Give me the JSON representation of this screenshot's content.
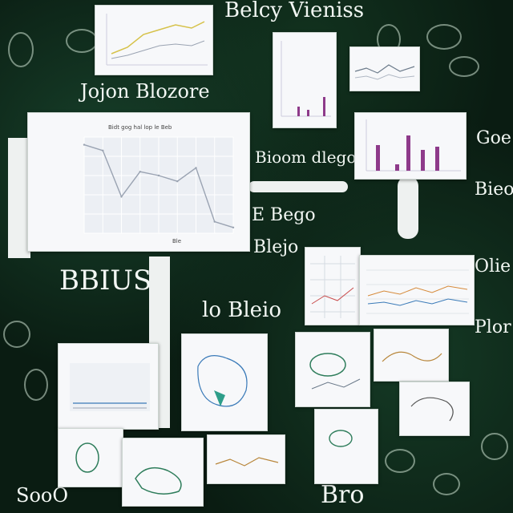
{
  "texts": {
    "top_heading": "Belcy Vieniss",
    "left_heading": "Jojon Blozore",
    "mid_label_1": "Bioom dlego",
    "mid_label_2": "E Bego",
    "right_label_1": "Blejo",
    "big_left": "BBIUS",
    "center_heading": "lo Bleio",
    "right_column_1": "Goe",
    "right_column_2": "Bieo",
    "right_column_3": "Olie",
    "right_column_4": "Plor",
    "bottom_right": "Bro",
    "bottom_left": "SooO",
    "chart_main_title": "Bidt gog hal lop le Beb",
    "chart_main_xlabel": "Ble"
  },
  "chart_data": {
    "type": "line",
    "title": "Bidt gog hal lop le Beb",
    "xlabel": "Ble",
    "ylabel": "",
    "x": [
      0,
      1,
      2,
      3,
      4,
      5,
      6,
      7,
      8
    ],
    "values": [
      9.2,
      8.6,
      3.8,
      6.4,
      6.0,
      5.4,
      6.8,
      1.2,
      0.6
    ],
    "ylim": [
      0,
      10
    ],
    "grid": true
  },
  "colors": {
    "board": "#0a1c12",
    "chalk": "#e8f2ea",
    "bar_purple": "#8e3a8a",
    "line_gray": "#9aa3b2",
    "accent_green": "#2e7d5b",
    "accent_blue": "#3a7ab8"
  }
}
